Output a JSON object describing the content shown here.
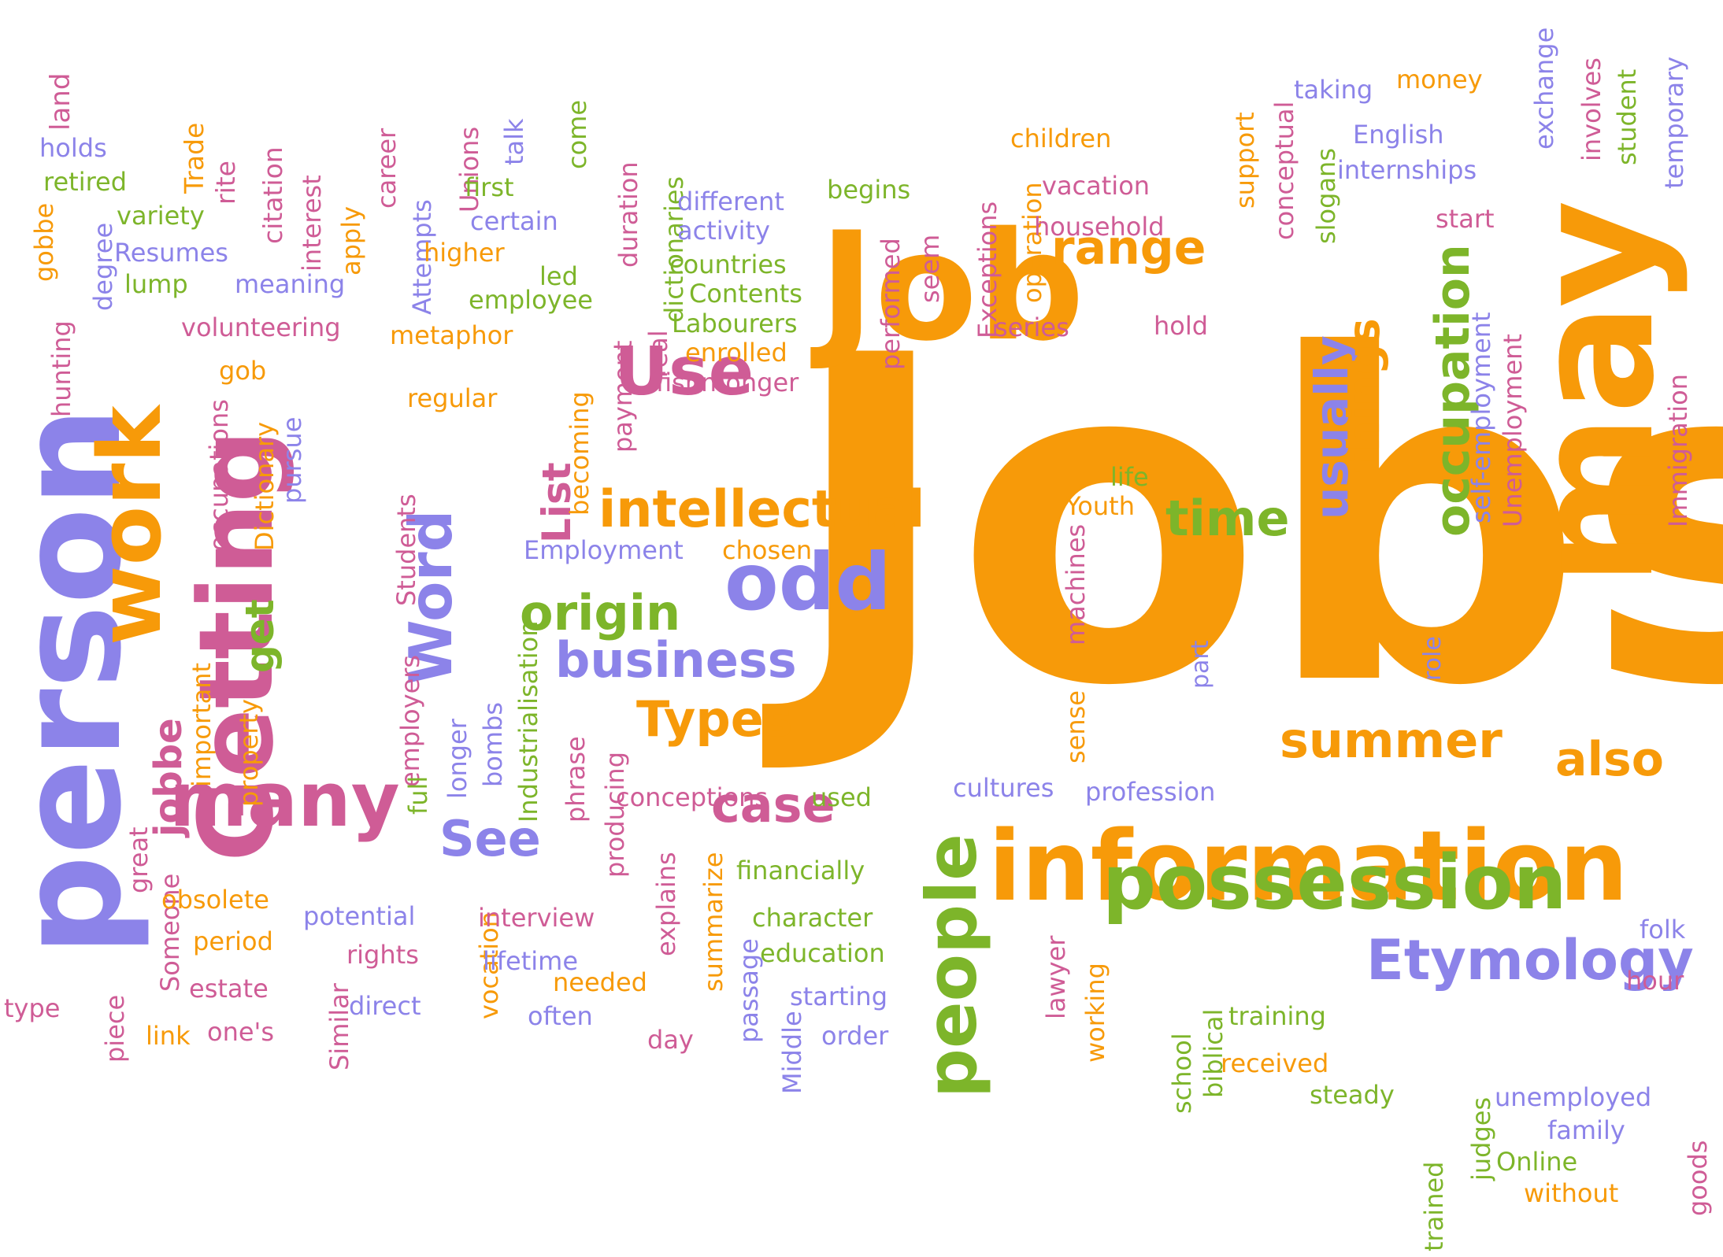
{
  "palette": {
    "orange": "#f79a09",
    "green": "#7db52a",
    "purple": "#8c83e9",
    "pink": "#cf5c96"
  },
  "words": [
    {
      "id": "jobs",
      "text": "Jobs",
      "color": "orange"
    },
    {
      "id": "job",
      "text": "Job",
      "color": "orange"
    },
    {
      "id": "may",
      "text": "may",
      "color": "orange"
    },
    {
      "id": "information",
      "text": "information",
      "color": "orange"
    },
    {
      "id": "person",
      "text": "person",
      "color": "purple"
    },
    {
      "id": "getting",
      "text": "Getting",
      "color": "pink"
    },
    {
      "id": "work",
      "text": "work",
      "color": "orange"
    },
    {
      "id": "many",
      "text": "many",
      "color": "pink"
    },
    {
      "id": "people",
      "text": "people",
      "color": "green"
    },
    {
      "id": "possession",
      "text": "possession",
      "color": "green"
    },
    {
      "id": "odd",
      "text": "odd",
      "color": "purple"
    },
    {
      "id": "use",
      "text": "Use",
      "color": "pink"
    },
    {
      "id": "word",
      "text": "Word",
      "color": "purple"
    },
    {
      "id": "intellectual",
      "text": "intellectual",
      "color": "orange"
    },
    {
      "id": "etymology",
      "text": "Etymology",
      "color": "purple"
    },
    {
      "id": "summer",
      "text": "summer",
      "color": "orange"
    },
    {
      "id": "origin",
      "text": "origin",
      "color": "green"
    },
    {
      "id": "business",
      "text": "business",
      "color": "purple"
    },
    {
      "id": "types",
      "text": "Types",
      "color": "orange"
    },
    {
      "id": "case",
      "text": "case",
      "color": "pink"
    },
    {
      "id": "see",
      "text": "See",
      "color": "purple"
    },
    {
      "id": "range",
      "text": "range",
      "color": "orange"
    },
    {
      "id": "time",
      "text": "time",
      "color": "green"
    },
    {
      "id": "also",
      "text": "also",
      "color": "orange"
    },
    {
      "id": "occupation",
      "text": "occupation",
      "color": "green"
    },
    {
      "id": "usually",
      "text": "usually",
      "color": "purple"
    },
    {
      "id": "things",
      "text": "things",
      "color": "orange"
    },
    {
      "id": "list",
      "text": "List",
      "color": "pink"
    },
    {
      "id": "get",
      "text": "get",
      "color": "green"
    },
    {
      "id": "jobbe",
      "text": "jobbe",
      "color": "pink"
    },
    {
      "id": "land",
      "text": "land",
      "color": "pink"
    },
    {
      "id": "holds",
      "text": "holds",
      "color": "purple"
    },
    {
      "id": "trade",
      "text": "Trade",
      "color": "orange"
    },
    {
      "id": "rite",
      "text": "rite",
      "color": "pink"
    },
    {
      "id": "citation",
      "text": "citation",
      "color": "pink"
    },
    {
      "id": "retired",
      "text": "retired",
      "color": "green"
    },
    {
      "id": "variety",
      "text": "variety",
      "color": "green"
    },
    {
      "id": "gobbe",
      "text": "gobbe",
      "color": "orange"
    },
    {
      "id": "degree",
      "text": "degree",
      "color": "purple"
    },
    {
      "id": "resumes",
      "text": "Resumes",
      "color": "purple"
    },
    {
      "id": "lump",
      "text": "lump",
      "color": "green"
    },
    {
      "id": "interest",
      "text": "interest",
      "color": "pink"
    },
    {
      "id": "apply",
      "text": "apply",
      "color": "orange"
    },
    {
      "id": "career",
      "text": "career",
      "color": "pink"
    },
    {
      "id": "meaning",
      "text": "meaning",
      "color": "purple"
    },
    {
      "id": "unions",
      "text": "Unions",
      "color": "pink"
    },
    {
      "id": "attempts",
      "text": "Attempts",
      "color": "purple"
    },
    {
      "id": "talk",
      "text": "talk",
      "color": "purple"
    },
    {
      "id": "come",
      "text": "come",
      "color": "green"
    },
    {
      "id": "first",
      "text": "first",
      "color": "green"
    },
    {
      "id": "certain",
      "text": "certain",
      "color": "purple"
    },
    {
      "id": "higher",
      "text": "higher",
      "color": "orange"
    },
    {
      "id": "duration",
      "text": "duration",
      "color": "pink"
    },
    {
      "id": "dictionaries",
      "text": "dictionaries",
      "color": "green"
    },
    {
      "id": "led",
      "text": "led",
      "color": "green"
    },
    {
      "id": "employee",
      "text": "employee",
      "color": "green"
    },
    {
      "id": "volunteering",
      "text": "volunteering",
      "color": "pink"
    },
    {
      "id": "hunting",
      "text": "hunting",
      "color": "pink"
    },
    {
      "id": "metaphor",
      "text": "metaphor",
      "color": "orange"
    },
    {
      "id": "gob",
      "text": "gob",
      "color": "orange"
    },
    {
      "id": "occupations",
      "text": "occupations",
      "color": "pink"
    },
    {
      "id": "dictionary",
      "text": "Dictionary",
      "color": "orange"
    },
    {
      "id": "pursue",
      "text": "pursue",
      "color": "purple"
    },
    {
      "id": "regular",
      "text": "regular",
      "color": "orange"
    },
    {
      "id": "students",
      "text": "Students",
      "color": "pink"
    },
    {
      "id": "payment",
      "text": "payment",
      "color": "pink"
    },
    {
      "id": "real",
      "text": "real",
      "color": "pink"
    },
    {
      "id": "becoming",
      "text": "becoming",
      "color": "orange"
    },
    {
      "id": "different",
      "text": "different",
      "color": "purple"
    },
    {
      "id": "activity",
      "text": "activity",
      "color": "purple"
    },
    {
      "id": "countries",
      "text": "countries",
      "color": "green"
    },
    {
      "id": "contents",
      "text": "Contents",
      "color": "green"
    },
    {
      "id": "labourers",
      "text": "Labourers",
      "color": "green"
    },
    {
      "id": "enrolled",
      "text": "enrolled",
      "color": "orange"
    },
    {
      "id": "fishmonger",
      "text": "fishmonger",
      "color": "pink"
    },
    {
      "id": "begins",
      "text": "begins",
      "color": "green"
    },
    {
      "id": "performed",
      "text": "performed",
      "color": "pink"
    },
    {
      "id": "seem",
      "text": "seem",
      "color": "pink"
    },
    {
      "id": "exceptions",
      "text": "Exceptions",
      "color": "pink"
    },
    {
      "id": "operation",
      "text": "operation",
      "color": "orange"
    },
    {
      "id": "children",
      "text": "children",
      "color": "orange"
    },
    {
      "id": "vacation",
      "text": "vacation",
      "color": "pink"
    },
    {
      "id": "household",
      "text": "household",
      "color": "pink"
    },
    {
      "id": "support",
      "text": "support",
      "color": "orange"
    },
    {
      "id": "conceptual",
      "text": "conceptual",
      "color": "pink"
    },
    {
      "id": "slogans",
      "text": "slogans",
      "color": "green"
    },
    {
      "id": "taking",
      "text": "taking",
      "color": "purple"
    },
    {
      "id": "money",
      "text": "money",
      "color": "orange"
    },
    {
      "id": "exchange",
      "text": "exchange",
      "color": "purple"
    },
    {
      "id": "involves",
      "text": "involves",
      "color": "pink"
    },
    {
      "id": "student",
      "text": "student",
      "color": "green"
    },
    {
      "id": "temporary",
      "text": "temporary",
      "color": "purple"
    },
    {
      "id": "english",
      "text": "English",
      "color": "purple"
    },
    {
      "id": "internships",
      "text": "internships",
      "color": "purple"
    },
    {
      "id": "start",
      "text": "start",
      "color": "pink"
    },
    {
      "id": "series",
      "text": "series",
      "color": "pink"
    },
    {
      "id": "hold",
      "text": "hold",
      "color": "pink"
    },
    {
      "id": "self_employment",
      "text": "self-employment",
      "color": "purple"
    },
    {
      "id": "unemployment",
      "text": "Unemployment",
      "color": "pink"
    },
    {
      "id": "immigration",
      "text": "Immigration",
      "color": "pink"
    },
    {
      "id": "life",
      "text": "life",
      "color": "green"
    },
    {
      "id": "youth",
      "text": "Youth",
      "color": "orange"
    },
    {
      "id": "machines",
      "text": "machines",
      "color": "pink"
    },
    {
      "id": "employment",
      "text": "Employment",
      "color": "purple"
    },
    {
      "id": "chosen",
      "text": "chosen",
      "color": "orange"
    },
    {
      "id": "important",
      "text": "important",
      "color": "orange"
    },
    {
      "id": "property",
      "text": "property",
      "color": "orange"
    },
    {
      "id": "employers",
      "text": "employers",
      "color": "pink"
    },
    {
      "id": "full",
      "text": "full",
      "color": "green"
    },
    {
      "id": "longer",
      "text": "longer",
      "color": "purple"
    },
    {
      "id": "bombs",
      "text": "bombs",
      "color": "purple"
    },
    {
      "id": "industrialisation",
      "text": "Industrialisation",
      "color": "green"
    },
    {
      "id": "phrase",
      "text": "phrase",
      "color": "pink"
    },
    {
      "id": "producing",
      "text": "producing",
      "color": "pink"
    },
    {
      "id": "part",
      "text": "part",
      "color": "purple"
    },
    {
      "id": "role",
      "text": "role",
      "color": "purple"
    },
    {
      "id": "sense",
      "text": "sense",
      "color": "orange"
    },
    {
      "id": "cultures",
      "text": "cultures",
      "color": "purple"
    },
    {
      "id": "profession",
      "text": "profession",
      "color": "purple"
    },
    {
      "id": "conceptions",
      "text": "conceptions",
      "color": "pink"
    },
    {
      "id": "used",
      "text": "used",
      "color": "green"
    },
    {
      "id": "great",
      "text": "great",
      "color": "pink"
    },
    {
      "id": "someone",
      "text": "Someone",
      "color": "pink"
    },
    {
      "id": "obsolete",
      "text": "obsolete",
      "color": "orange"
    },
    {
      "id": "period",
      "text": "period",
      "color": "orange"
    },
    {
      "id": "potential",
      "text": "potential",
      "color": "purple"
    },
    {
      "id": "rights",
      "text": "rights",
      "color": "pink"
    },
    {
      "id": "vocation",
      "text": "vocation",
      "color": "orange"
    },
    {
      "id": "interview",
      "text": "interview",
      "color": "pink"
    },
    {
      "id": "lifetime",
      "text": "lifetime",
      "color": "purple"
    },
    {
      "id": "explains",
      "text": "explains",
      "color": "pink"
    },
    {
      "id": "summarize",
      "text": "summarize",
      "color": "orange"
    },
    {
      "id": "passage",
      "text": "passage",
      "color": "purple"
    },
    {
      "id": "financially",
      "text": "financially",
      "color": "green"
    },
    {
      "id": "character",
      "text": "character",
      "color": "green"
    },
    {
      "id": "education",
      "text": "education",
      "color": "green"
    },
    {
      "id": "lawyer",
      "text": "lawyer",
      "color": "pink"
    },
    {
      "id": "working",
      "text": "working",
      "color": "orange"
    },
    {
      "id": "folk",
      "text": "folk",
      "color": "purple"
    },
    {
      "id": "hour",
      "text": "hour",
      "color": "pink"
    },
    {
      "id": "type",
      "text": "type",
      "color": "pink"
    },
    {
      "id": "piece",
      "text": "piece",
      "color": "pink"
    },
    {
      "id": "estate",
      "text": "estate",
      "color": "pink"
    },
    {
      "id": "link",
      "text": "link",
      "color": "orange"
    },
    {
      "id": "ones",
      "text": "one's",
      "color": "pink"
    },
    {
      "id": "similar",
      "text": "Similar",
      "color": "pink"
    },
    {
      "id": "direct",
      "text": "direct",
      "color": "purple"
    },
    {
      "id": "needed",
      "text": "needed",
      "color": "orange"
    },
    {
      "id": "often",
      "text": "often",
      "color": "purple"
    },
    {
      "id": "day",
      "text": "day",
      "color": "pink"
    },
    {
      "id": "middle",
      "text": "Middle",
      "color": "purple"
    },
    {
      "id": "starting",
      "text": "starting",
      "color": "purple"
    },
    {
      "id": "order",
      "text": "order",
      "color": "purple"
    },
    {
      "id": "school",
      "text": "school",
      "color": "green"
    },
    {
      "id": "biblical",
      "text": "biblical",
      "color": "green"
    },
    {
      "id": "training",
      "text": "training",
      "color": "green"
    },
    {
      "id": "received",
      "text": "received",
      "color": "orange"
    },
    {
      "id": "steady",
      "text": "steady",
      "color": "green"
    },
    {
      "id": "unemployed",
      "text": "unemployed",
      "color": "purple"
    },
    {
      "id": "family",
      "text": "family",
      "color": "purple"
    },
    {
      "id": "online",
      "text": "Online",
      "color": "green"
    },
    {
      "id": "without",
      "text": "without",
      "color": "orange"
    },
    {
      "id": "trained",
      "text": "trained",
      "color": "green"
    },
    {
      "id": "judges",
      "text": "judges",
      "color": "green"
    },
    {
      "id": "goods",
      "text": "goods",
      "color": "pink"
    }
  ]
}
